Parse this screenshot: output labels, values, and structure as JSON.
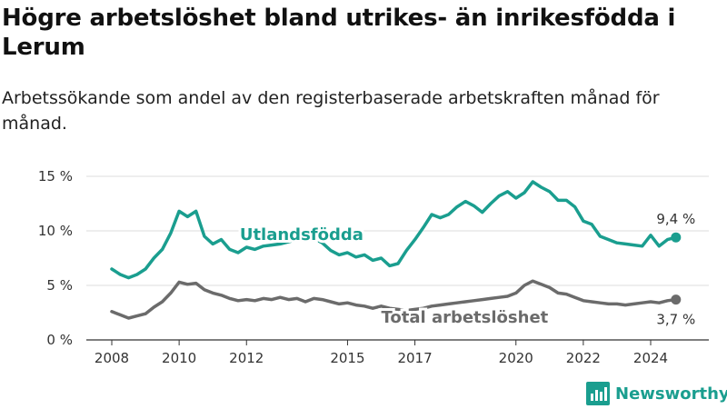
{
  "header": {
    "title": "Högre arbetslöshet bland utrikes- än inrikesfödda i Lerum",
    "subtitle": "Arbetssökande som andel av den registerbaserade arbetskraften månad för månad."
  },
  "brand": {
    "name": "Newsworthy",
    "icon": "bar-chart-logo-icon",
    "color": "#1a9e8f"
  },
  "chart_data": {
    "type": "line",
    "title": "Högre arbetslöshet bland utrikes- än inrikesfödda i Lerum",
    "subtitle": "Arbetssökande som andel av den registerbaserade arbetskraften månad för månad.",
    "xlabel": "",
    "ylabel": "",
    "x_ticks": [
      "2008",
      "2010",
      "2012",
      "2015",
      "2017",
      "2020",
      "2022",
      "2024"
    ],
    "y_ticks": [
      "0 %",
      "5 %",
      "10 %",
      "15 %"
    ],
    "ylim": [
      0,
      15
    ],
    "xlim": [
      "2008-01",
      "2024-12"
    ],
    "grid": "horizontal",
    "legend": "inline labels",
    "series": [
      {
        "name": "Utlandsfödda",
        "color": "#1a9e8f",
        "end_label": "9,4 %",
        "points": [
          [
            "2008-01",
            6.5
          ],
          [
            "2008-04",
            6.0
          ],
          [
            "2008-07",
            5.7
          ],
          [
            "2008-10",
            6.0
          ],
          [
            "2009-01",
            6.5
          ],
          [
            "2009-04",
            7.5
          ],
          [
            "2009-07",
            8.3
          ],
          [
            "2009-10",
            9.8
          ],
          [
            "2010-01",
            11.8
          ],
          [
            "2010-04",
            11.3
          ],
          [
            "2010-07",
            11.8
          ],
          [
            "2010-10",
            9.5
          ],
          [
            "2011-01",
            8.8
          ],
          [
            "2011-04",
            9.2
          ],
          [
            "2011-07",
            8.3
          ],
          [
            "2011-10",
            8.0
          ],
          [
            "2012-01",
            8.5
          ],
          [
            "2012-04",
            8.3
          ],
          [
            "2012-07",
            8.6
          ],
          [
            "2012-10",
            8.7
          ],
          [
            "2013-01",
            8.8
          ],
          [
            "2013-04",
            9.0
          ],
          [
            "2013-07",
            9.2
          ],
          [
            "2013-10",
            9.4
          ],
          [
            "2014-01",
            9.3
          ],
          [
            "2014-04",
            8.9
          ],
          [
            "2014-07",
            8.2
          ],
          [
            "2014-10",
            7.8
          ],
          [
            "2015-01",
            8.0
          ],
          [
            "2015-04",
            7.6
          ],
          [
            "2015-07",
            7.8
          ],
          [
            "2015-10",
            7.3
          ],
          [
            "2016-01",
            7.5
          ],
          [
            "2016-04",
            6.8
          ],
          [
            "2016-07",
            7.0
          ],
          [
            "2016-10",
            8.2
          ],
          [
            "2017-01",
            9.2
          ],
          [
            "2017-04",
            10.3
          ],
          [
            "2017-07",
            11.5
          ],
          [
            "2017-10",
            11.2
          ],
          [
            "2018-01",
            11.5
          ],
          [
            "2018-04",
            12.2
          ],
          [
            "2018-07",
            12.7
          ],
          [
            "2018-10",
            12.3
          ],
          [
            "2019-01",
            11.7
          ],
          [
            "2019-04",
            12.5
          ],
          [
            "2019-07",
            13.2
          ],
          [
            "2019-10",
            13.6
          ],
          [
            "2020-01",
            13.0
          ],
          [
            "2020-04",
            13.5
          ],
          [
            "2020-07",
            14.5
          ],
          [
            "2020-10",
            14.0
          ],
          [
            "2021-01",
            13.6
          ],
          [
            "2021-04",
            12.8
          ],
          [
            "2021-07",
            12.8
          ],
          [
            "2021-10",
            12.2
          ],
          [
            "2022-01",
            10.9
          ],
          [
            "2022-04",
            10.6
          ],
          [
            "2022-07",
            9.5
          ],
          [
            "2022-10",
            9.2
          ],
          [
            "2023-01",
            8.9
          ],
          [
            "2023-04",
            8.8
          ],
          [
            "2023-07",
            8.7
          ],
          [
            "2023-10",
            8.6
          ],
          [
            "2024-01",
            9.6
          ],
          [
            "2024-04",
            8.6
          ],
          [
            "2024-07",
            9.2
          ],
          [
            "2024-10",
            9.4
          ]
        ]
      },
      {
        "name": "Total arbetslöshet",
        "color": "#6b6b6b",
        "end_label": "3,7 %",
        "points": [
          [
            "2008-01",
            2.6
          ],
          [
            "2008-04",
            2.3
          ],
          [
            "2008-07",
            2.0
          ],
          [
            "2008-10",
            2.2
          ],
          [
            "2009-01",
            2.4
          ],
          [
            "2009-04",
            3.0
          ],
          [
            "2009-07",
            3.5
          ],
          [
            "2009-10",
            4.3
          ],
          [
            "2010-01",
            5.3
          ],
          [
            "2010-04",
            5.1
          ],
          [
            "2010-07",
            5.2
          ],
          [
            "2010-10",
            4.6
          ],
          [
            "2011-01",
            4.3
          ],
          [
            "2011-04",
            4.1
          ],
          [
            "2011-07",
            3.8
          ],
          [
            "2011-10",
            3.6
          ],
          [
            "2012-01",
            3.7
          ],
          [
            "2012-04",
            3.6
          ],
          [
            "2012-07",
            3.8
          ],
          [
            "2012-10",
            3.7
          ],
          [
            "2013-01",
            3.9
          ],
          [
            "2013-04",
            3.7
          ],
          [
            "2013-07",
            3.8
          ],
          [
            "2013-10",
            3.5
          ],
          [
            "2014-01",
            3.8
          ],
          [
            "2014-04",
            3.7
          ],
          [
            "2014-07",
            3.5
          ],
          [
            "2014-10",
            3.3
          ],
          [
            "2015-01",
            3.4
          ],
          [
            "2015-04",
            3.2
          ],
          [
            "2015-07",
            3.1
          ],
          [
            "2015-10",
            2.9
          ],
          [
            "2016-01",
            3.1
          ],
          [
            "2016-04",
            2.9
          ],
          [
            "2016-07",
            2.8
          ],
          [
            "2016-10",
            2.7
          ],
          [
            "2017-01",
            2.8
          ],
          [
            "2017-04",
            2.9
          ],
          [
            "2017-07",
            3.1
          ],
          [
            "2017-10",
            3.2
          ],
          [
            "2018-01",
            3.3
          ],
          [
            "2018-04",
            3.4
          ],
          [
            "2018-07",
            3.5
          ],
          [
            "2018-10",
            3.6
          ],
          [
            "2019-01",
            3.7
          ],
          [
            "2019-04",
            3.8
          ],
          [
            "2019-07",
            3.9
          ],
          [
            "2019-10",
            4.0
          ],
          [
            "2020-01",
            4.3
          ],
          [
            "2020-04",
            5.0
          ],
          [
            "2020-07",
            5.4
          ],
          [
            "2020-10",
            5.1
          ],
          [
            "2021-01",
            4.8
          ],
          [
            "2021-04",
            4.3
          ],
          [
            "2021-07",
            4.2
          ],
          [
            "2021-10",
            3.9
          ],
          [
            "2022-01",
            3.6
          ],
          [
            "2022-04",
            3.5
          ],
          [
            "2022-07",
            3.4
          ],
          [
            "2022-10",
            3.3
          ],
          [
            "2023-01",
            3.3
          ],
          [
            "2023-04",
            3.2
          ],
          [
            "2023-07",
            3.3
          ],
          [
            "2023-10",
            3.4
          ],
          [
            "2024-01",
            3.5
          ],
          [
            "2024-04",
            3.4
          ],
          [
            "2024-07",
            3.6
          ],
          [
            "2024-10",
            3.7
          ]
        ]
      }
    ]
  }
}
